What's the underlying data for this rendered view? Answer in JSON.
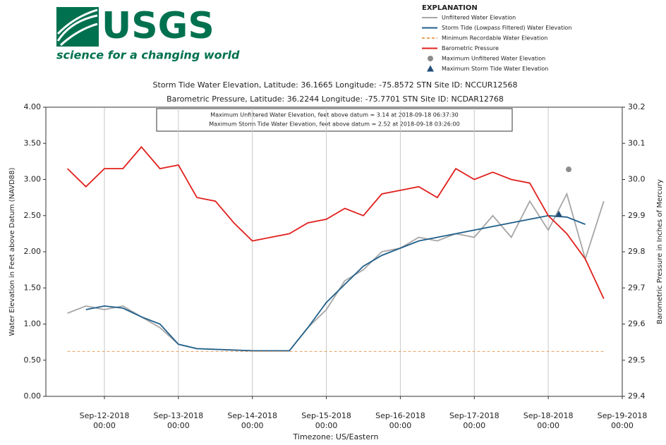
{
  "logo": {
    "name": "USGS",
    "tagline": "science for a changing world"
  },
  "chart_data": {
    "type": "line",
    "title": "Storm Tide Water Elevation, Latitude: 36.1665 Longitude: -75.8572 STN Site ID: NCCUR12568",
    "subtitle": "Barometric Pressure, Latitude: 36.2244 Longitude: -75.7701 STN Site ID: NCDAR12768",
    "annotations": [
      "Maximum Unfiltered Water Elevation, feet above datum = 3.14 at 2018-09-18 06:37:30",
      "Maximum Storm Tide Water Elevation, feet above datum = 2.52 at 2018-09-18 03:26:00"
    ],
    "legend_title": "EXPLANATION",
    "xlabel": "Timezone: US/Eastern",
    "ylabel": "Water Elevation in Feet above Datum (NAVD88)",
    "y2label": "Barometric Pressure in Inches of Mercury",
    "grid": "x",
    "x": [
      "2018-09-11T12:00",
      "2018-09-11T18:00",
      "2018-09-12T00:00",
      "2018-09-12T06:00",
      "2018-09-12T12:00",
      "2018-09-12T18:00",
      "2018-09-13T00:00",
      "2018-09-13T06:00",
      "2018-09-13T12:00",
      "2018-09-13T18:00",
      "2018-09-14T00:00",
      "2018-09-14T06:00",
      "2018-09-14T12:00",
      "2018-09-14T18:00",
      "2018-09-15T00:00",
      "2018-09-15T06:00",
      "2018-09-15T12:00",
      "2018-09-15T18:00",
      "2018-09-16T00:00",
      "2018-09-16T06:00",
      "2018-09-16T12:00",
      "2018-09-16T18:00",
      "2018-09-17T00:00",
      "2018-09-17T06:00",
      "2018-09-17T12:00",
      "2018-09-17T18:00",
      "2018-09-18T00:00",
      "2018-09-18T06:00",
      "2018-09-18T12:00",
      "2018-09-18T18:00"
    ],
    "series": [
      {
        "name": "Unfiltered Water Elevation",
        "color": "#a6a6a6",
        "values": [
          1.15,
          1.25,
          1.2,
          1.25,
          1.1,
          0.95,
          0.72,
          0.66,
          0.65,
          0.64,
          0.63,
          0.63,
          0.63,
          0.95,
          1.2,
          1.6,
          1.75,
          2.0,
          2.05,
          2.2,
          2.15,
          2.25,
          2.2,
          2.5,
          2.2,
          2.7,
          2.3,
          2.8,
          1.9,
          2.7
        ]
      },
      {
        "name": "Storm Tide (Lowpass Filtered) Water Elevation",
        "color": "#1f5f8b",
        "values": [
          null,
          1.2,
          1.25,
          1.22,
          1.1,
          1.0,
          0.72,
          0.66,
          0.65,
          0.64,
          0.63,
          0.63,
          0.63,
          0.95,
          1.3,
          1.55,
          1.8,
          1.95,
          2.05,
          2.15,
          2.2,
          2.25,
          2.3,
          2.35,
          2.4,
          2.45,
          2.5,
          2.48,
          2.38,
          null
        ]
      },
      {
        "name": "Minimum Recordable Water Elevation",
        "color": "#e8a060",
        "dash": true,
        "values": [
          0.62,
          0.62,
          0.62,
          0.62,
          0.62,
          0.62,
          0.62,
          0.62,
          0.62,
          0.62,
          0.62,
          0.62,
          0.62,
          0.62,
          0.62,
          0.62,
          0.62,
          0.62,
          0.62,
          0.62,
          0.62,
          0.62,
          0.62,
          0.62,
          0.62,
          0.62,
          0.62,
          0.62,
          0.62,
          0.62
        ]
      },
      {
        "name": "Barometric Pressure",
        "color": "#e0201c",
        "axis": "y2",
        "values": [
          30.03,
          29.98,
          30.03,
          30.03,
          30.09,
          30.03,
          30.04,
          29.95,
          29.94,
          29.88,
          29.83,
          29.84,
          29.85,
          29.88,
          29.89,
          29.92,
          29.9,
          29.96,
          29.97,
          29.98,
          29.95,
          30.03,
          30.0,
          30.02,
          30.0,
          29.99,
          29.9,
          29.85,
          29.78,
          29.67
        ]
      },
      {
        "name": "Maximum Unfiltered Water Elevation",
        "color": "#8c8c8c",
        "marker": "circle",
        "x": [
          "2018-09-18T06:37"
        ],
        "values": [
          3.14
        ]
      },
      {
        "name": "Maximum Storm Tide Water Elevation",
        "color": "#1f4e79",
        "marker": "triangle",
        "x": [
          "2018-09-18T03:26"
        ],
        "values": [
          2.52
        ]
      }
    ],
    "xlim": [
      "2018-09-11T05:00",
      "2018-09-19T00:00"
    ],
    "xticks": [
      {
        "value": "2018-09-12T00:00",
        "label": "Sep-12-2018 00:00"
      },
      {
        "value": "2018-09-13T00:00",
        "label": "Sep-13-2018 00:00"
      },
      {
        "value": "2018-09-14T00:00",
        "label": "Sep-14-2018 00:00"
      },
      {
        "value": "2018-09-15T00:00",
        "label": "Sep-15-2018 00:00"
      },
      {
        "value": "2018-09-16T00:00",
        "label": "Sep-16-2018 00:00"
      },
      {
        "value": "2018-09-17T00:00",
        "label": "Sep-17-2018 00:00"
      },
      {
        "value": "2018-09-18T00:00",
        "label": "Sep-18-2018 00:00"
      },
      {
        "value": "2018-09-19T00:00",
        "label": "Sep-19-2018 00:00"
      }
    ],
    "ylim": [
      0,
      4
    ],
    "yticks": [
      {
        "value": 0,
        "label": "0.00"
      },
      {
        "value": 0.5,
        "label": "0.50"
      },
      {
        "value": 1,
        "label": "1.00"
      },
      {
        "value": 1.5,
        "label": "1.50"
      },
      {
        "value": 2,
        "label": "2.00"
      },
      {
        "value": 2.5,
        "label": "2.50"
      },
      {
        "value": 3,
        "label": "3.00"
      },
      {
        "value": 3.5,
        "label": "3.50"
      },
      {
        "value": 4,
        "label": "4.00"
      }
    ],
    "y2lim": [
      29.4,
      30.2
    ],
    "y2ticks": [
      29.4,
      29.5,
      29.6,
      29.7,
      29.8,
      29.9,
      {
        "value": 30.0,
        "label": "30.0"
      },
      30.1,
      30.2
    ]
  }
}
